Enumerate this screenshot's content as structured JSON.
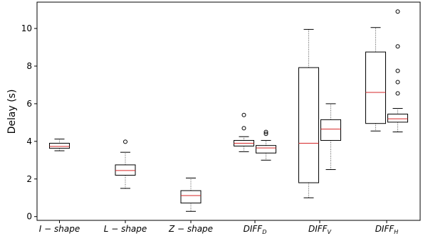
{
  "chart_data": {
    "type": "box",
    "ylabel": "Delay (s)",
    "ylim": [
      -0.2,
      11.4
    ],
    "yticks": [
      0,
      2,
      4,
      6,
      8,
      10
    ],
    "grid": false,
    "colors": {
      "box": "#000000",
      "median": "#d62728",
      "whisker": "#555555",
      "flier": "#000000"
    },
    "categories": [
      {
        "main": "I − shape",
        "sub": ""
      },
      {
        "main": "L − shape",
        "sub": ""
      },
      {
        "main": "Z − shape",
        "sub": ""
      },
      {
        "main": "DIFF",
        "sub": "D"
      },
      {
        "main": "DIFF",
        "sub": "V"
      },
      {
        "main": "DIFF",
        "sub": "H"
      }
    ],
    "boxes": [
      {
        "category": 0,
        "min": 3.5,
        "q1": 3.63,
        "median": 3.73,
        "q3": 3.9,
        "max": 4.12,
        "fliers": []
      },
      {
        "category": 1,
        "min": 1.5,
        "q1": 2.2,
        "median": 2.45,
        "q3": 2.75,
        "max": 3.42,
        "fliers": [
          3.98
        ]
      },
      {
        "category": 2,
        "min": 0.28,
        "q1": 0.72,
        "median": 1.12,
        "q3": 1.38,
        "max": 2.05,
        "fliers": []
      },
      {
        "category": 3,
        "min": 3.45,
        "q1": 3.75,
        "median": 3.9,
        "q3": 4.05,
        "max": 4.25,
        "fliers": [
          4.7,
          5.4
        ]
      },
      {
        "category": 3,
        "min": 3.0,
        "q1": 3.38,
        "median": 3.65,
        "q3": 3.78,
        "max": 4.05,
        "fliers": [
          4.4,
          4.5
        ]
      },
      {
        "category": 4,
        "min": 1.0,
        "q1": 1.8,
        "median": 3.9,
        "q3": 7.92,
        "max": 9.95,
        "fliers": []
      },
      {
        "category": 4,
        "min": 2.5,
        "q1": 4.05,
        "median": 4.65,
        "q3": 5.15,
        "max": 6.0,
        "fliers": []
      },
      {
        "category": 5,
        "min": 4.55,
        "q1": 4.95,
        "median": 6.6,
        "q3": 8.75,
        "max": 10.05,
        "fliers": []
      },
      {
        "category": 5,
        "min": 4.5,
        "q1": 5.02,
        "median": 5.2,
        "q3": 5.45,
        "max": 5.75,
        "fliers": [
          6.55,
          7.15,
          7.75,
          9.05,
          10.9
        ]
      }
    ]
  }
}
